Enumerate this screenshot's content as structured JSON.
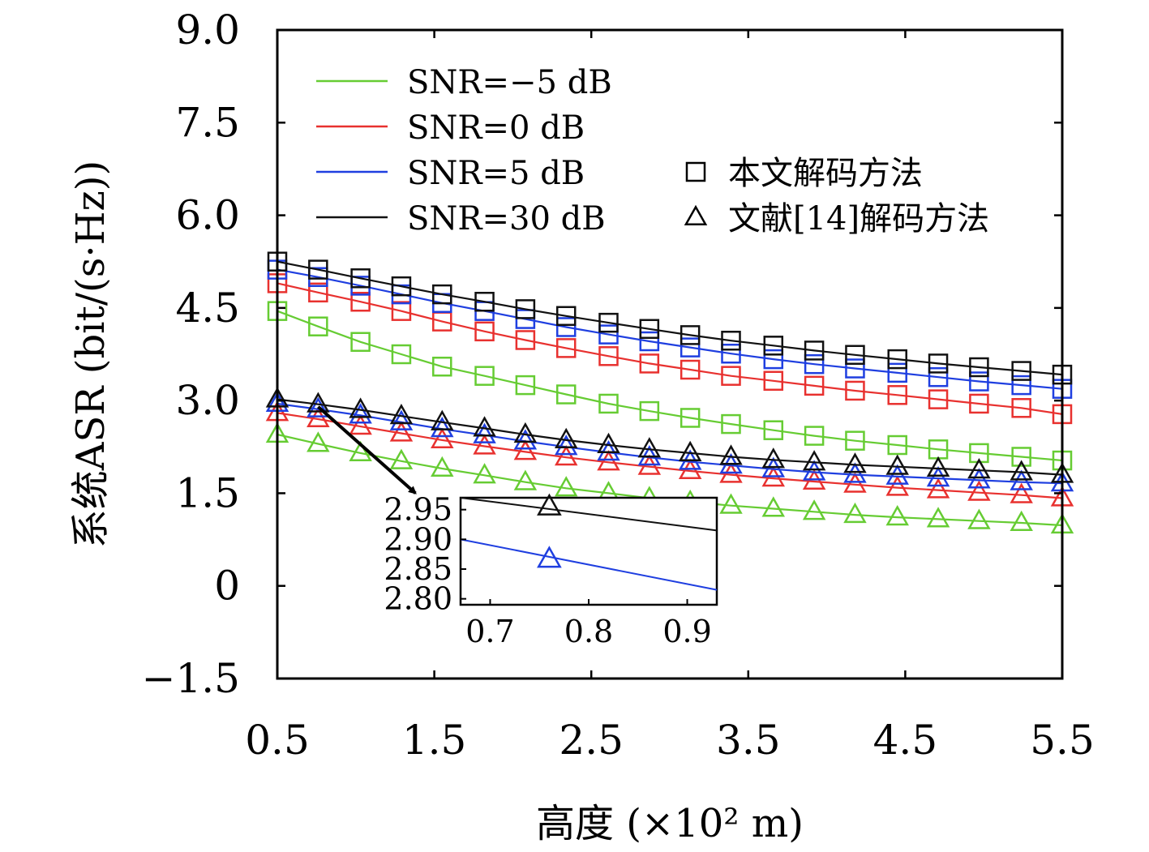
{
  "chart_data": {
    "type": "line",
    "xlabel": "高度 (×10² m)",
    "ylabel": "系统ASR (bit/(s·Hz))",
    "xlim": [
      0.5,
      5.5
    ],
    "ylim": [
      -1.5,
      9.0
    ],
    "x_ticks": [
      0.5,
      1.5,
      2.5,
      3.5,
      4.5,
      5.5
    ],
    "x_tick_labels": [
      "0.5",
      "1.5",
      "2.5",
      "3.5",
      "4.5",
      "5.5"
    ],
    "y_ticks": [
      -1.5,
      0,
      1.5,
      3.0,
      4.5,
      6.0,
      7.5,
      9.0
    ],
    "y_tick_labels": [
      "−1.5",
      "0",
      "1.5",
      "3.0",
      "4.5",
      "6.0",
      "7.5",
      "9.0"
    ],
    "grid": false,
    "legend_position": "top-left",
    "x": [
      0.5,
      0.76,
      1.03,
      1.29,
      1.55,
      1.82,
      2.08,
      2.34,
      2.61,
      2.87,
      3.13,
      3.39,
      3.66,
      3.92,
      4.18,
      4.45,
      4.71,
      4.97,
      5.24,
      5.5
    ],
    "series": [
      {
        "name": "SNR=−5 dB",
        "color": "#66cc33",
        "marker_method": "本文解码方法",
        "values": [
          4.45,
          4.2,
          3.95,
          3.75,
          3.55,
          3.4,
          3.25,
          3.1,
          2.95,
          2.83,
          2.72,
          2.62,
          2.52,
          2.43,
          2.35,
          2.28,
          2.21,
          2.15,
          2.09,
          2.03
        ]
      },
      {
        "name": "SNR=−5 dB",
        "color": "#66cc33",
        "marker_method": "文献[14]解码方法",
        "values": [
          2.45,
          2.3,
          2.15,
          2.02,
          1.9,
          1.79,
          1.68,
          1.58,
          1.5,
          1.42,
          1.36,
          1.3,
          1.25,
          1.2,
          1.15,
          1.11,
          1.08,
          1.05,
          1.02,
          0.98
        ]
      },
      {
        "name": "SNR=0 dB",
        "color": "#e8312f",
        "marker_method": "本文解码方法",
        "values": [
          4.9,
          4.75,
          4.6,
          4.45,
          4.28,
          4.12,
          3.98,
          3.85,
          3.72,
          3.6,
          3.5,
          3.4,
          3.32,
          3.24,
          3.16,
          3.09,
          3.02,
          2.95,
          2.88,
          2.78
        ]
      },
      {
        "name": "SNR=0 dB",
        "color": "#e8312f",
        "marker_method": "文献[14]解码方法",
        "values": [
          2.8,
          2.7,
          2.58,
          2.47,
          2.36,
          2.26,
          2.17,
          2.08,
          2.0,
          1.93,
          1.86,
          1.8,
          1.74,
          1.69,
          1.64,
          1.59,
          1.55,
          1.51,
          1.47,
          1.42
        ]
      },
      {
        "name": "SNR=5 dB",
        "color": "#1f3fe0",
        "marker_method": "本文解码方法",
        "values": [
          5.12,
          5.0,
          4.86,
          4.72,
          4.58,
          4.45,
          4.32,
          4.19,
          4.07,
          3.96,
          3.86,
          3.76,
          3.67,
          3.59,
          3.52,
          3.45,
          3.38,
          3.31,
          3.25,
          3.19
        ]
      },
      {
        "name": "SNR=5 dB",
        "color": "#1f3fe0",
        "marker_method": "文献[14]解码方法",
        "values": [
          2.95,
          2.86,
          2.76,
          2.65,
          2.54,
          2.44,
          2.34,
          2.25,
          2.16,
          2.08,
          2.01,
          1.95,
          1.89,
          1.84,
          1.8,
          1.77,
          1.74,
          1.71,
          1.68,
          1.66
        ]
      },
      {
        "name": "SNR=30 dB",
        "color": "#111111",
        "marker_method": "本文解码方法",
        "values": [
          5.25,
          5.12,
          4.98,
          4.85,
          4.72,
          4.6,
          4.48,
          4.37,
          4.26,
          4.16,
          4.06,
          3.97,
          3.89,
          3.81,
          3.74,
          3.67,
          3.6,
          3.54,
          3.48,
          3.42
        ]
      },
      {
        "name": "SNR=30 dB",
        "color": "#111111",
        "marker_method": "文献[14]解码方法",
        "values": [
          3.02,
          2.94,
          2.85,
          2.75,
          2.65,
          2.55,
          2.45,
          2.36,
          2.28,
          2.21,
          2.15,
          2.09,
          2.04,
          2.0,
          1.96,
          1.93,
          1.9,
          1.87,
          1.84,
          1.8
        ]
      }
    ],
    "legend_lines": [
      {
        "name": "SNR=−5 dB",
        "color": "#66cc33"
      },
      {
        "name": "SNR=0 dB",
        "color": "#e8312f"
      },
      {
        "name": "SNR=5 dB",
        "color": "#1f3fe0"
      },
      {
        "name": "SNR=30 dB",
        "color": "#111111"
      }
    ],
    "legend_markers": [
      {
        "name": "本文解码方法",
        "marker": "square"
      },
      {
        "name": "文献[14]解码方法",
        "marker": "triangle"
      }
    ],
    "inset": {
      "xlim": [
        0.67,
        0.93
      ],
      "ylim": [
        2.79,
        2.97
      ],
      "x_ticks": [
        0.7,
        0.8,
        0.9
      ],
      "x_tick_labels": [
        "0.7",
        "0.8",
        "0.9"
      ],
      "y_ticks": [
        2.8,
        2.85,
        2.9,
        2.95
      ],
      "y_tick_labels": [
        "2.80",
        "2.85",
        "2.90",
        "2.95"
      ],
      "lines": [
        {
          "color": "#111111",
          "x": [
            0.67,
            0.93
          ],
          "y": [
            2.97,
            2.915
          ],
          "marker_x": 0.76,
          "marker_y": 2.955
        },
        {
          "color": "#1f3fe0",
          "x": [
            0.67,
            0.93
          ],
          "y": [
            2.9,
            2.815
          ],
          "marker_x": 0.76,
          "marker_y": 2.867
        }
      ]
    },
    "arrow": {
      "from": [
        0.76,
        2.9
      ],
      "to": [
        1.38,
        1.5
      ]
    }
  }
}
